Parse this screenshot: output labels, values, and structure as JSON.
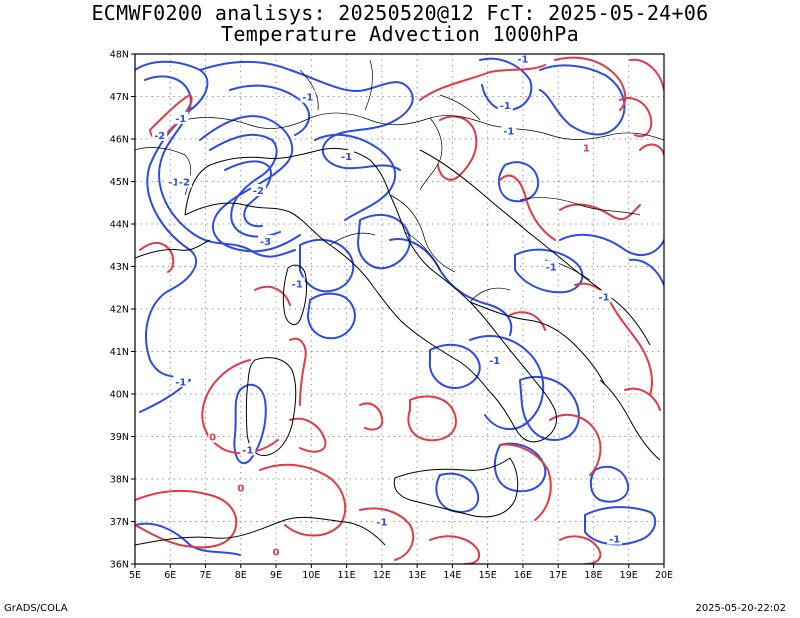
{
  "header": {
    "title_line1": "ECMWF0200 analisys: 20250520@12 FcT: 2025-05-24+06",
    "title_line2": "Temperature Advection 1000hPa"
  },
  "footer": {
    "left": "GrADS/COLA",
    "right": "2025-05-20-22:02"
  },
  "colors": {
    "negative": "#2b4be6",
    "positive": "#e23a44",
    "coast": "#000000",
    "grid": "#999999"
  },
  "map": {
    "lon_range": [
      5,
      20
    ],
    "lat_range": [
      36,
      48
    ],
    "lon_ticks": [
      "5E",
      "6E",
      "7E",
      "8E",
      "9E",
      "10E",
      "11E",
      "12E",
      "13E",
      "14E",
      "15E",
      "16E",
      "17E",
      "18E",
      "19E",
      "20E"
    ],
    "lat_ticks": [
      "36N",
      "37N",
      "38N",
      "39N",
      "40N",
      "41N",
      "42N",
      "43N",
      "44N",
      "45N",
      "46N",
      "47N",
      "48N"
    ],
    "contour_labels": [
      {
        "text": "-1",
        "lon": 6.1,
        "lat": 45.0,
        "sign": "neg"
      },
      {
        "text": "-2",
        "lon": 6.4,
        "lat": 45.0,
        "sign": "neg"
      },
      {
        "text": "-1",
        "lon": 6.3,
        "lat": 46.5,
        "sign": "neg"
      },
      {
        "text": "-2",
        "lon": 5.7,
        "lat": 46.1,
        "sign": "neg"
      },
      {
        "text": "-1",
        "lon": 9.9,
        "lat": 47.0,
        "sign": "neg"
      },
      {
        "text": "-2",
        "lon": 8.5,
        "lat": 44.8,
        "sign": "neg"
      },
      {
        "text": "-3",
        "lon": 8.7,
        "lat": 43.6,
        "sign": "neg"
      },
      {
        "text": "-1",
        "lon": 11.0,
        "lat": 45.6,
        "sign": "neg"
      },
      {
        "text": "-1",
        "lon": 15.6,
        "lat": 46.2,
        "sign": "neg"
      },
      {
        "text": "-1",
        "lon": 16.0,
        "lat": 47.9,
        "sign": "neg"
      },
      {
        "text": "-1",
        "lon": 15.5,
        "lat": 46.8,
        "sign": "neg"
      },
      {
        "text": "-1",
        "lon": 9.6,
        "lat": 42.6,
        "sign": "neg"
      },
      {
        "text": "-1",
        "lon": 16.8,
        "lat": 43.0,
        "sign": "neg"
      },
      {
        "text": "-1",
        "lon": 18.3,
        "lat": 42.3,
        "sign": "neg"
      },
      {
        "text": "-1",
        "lon": 6.3,
        "lat": 40.3,
        "sign": "neg"
      },
      {
        "text": "-1",
        "lon": 15.2,
        "lat": 40.8,
        "sign": "neg"
      },
      {
        "text": "-1",
        "lon": 8.2,
        "lat": 38.7,
        "sign": "neg"
      },
      {
        "text": "-1",
        "lon": 12.0,
        "lat": 37.0,
        "sign": "neg"
      },
      {
        "text": "-1",
        "lon": 18.6,
        "lat": 36.6,
        "sign": "neg"
      },
      {
        "text": "1",
        "lon": 17.8,
        "lat": 45.8,
        "sign": "pos"
      },
      {
        "text": "0",
        "lon": 7.2,
        "lat": 39.0,
        "sign": "pos"
      },
      {
        "text": "0",
        "lon": 8.0,
        "lat": 37.8,
        "sign": "pos"
      },
      {
        "text": "0",
        "lon": 9.0,
        "lat": 36.3,
        "sign": "pos"
      }
    ]
  }
}
